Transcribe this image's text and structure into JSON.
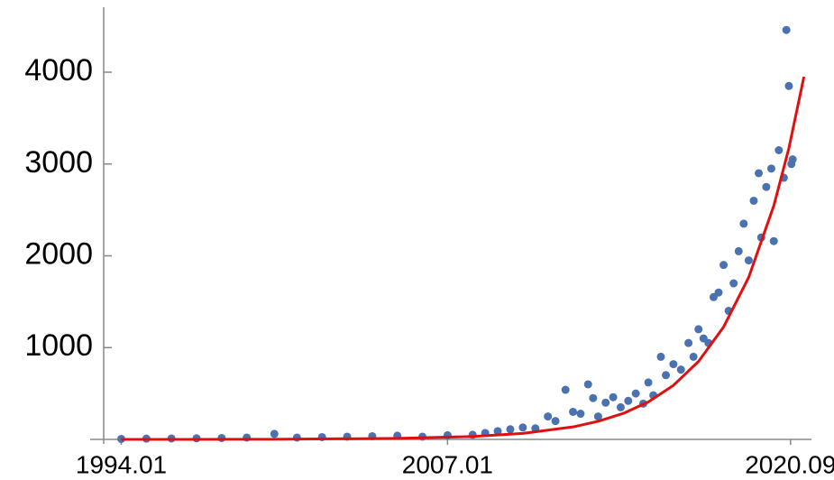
{
  "chart_data": {
    "type": "scatter",
    "xlim": [
      1993.3,
      2021.5
    ],
    "xticks": [
      {
        "value": 1994,
        "label": "1994.01"
      },
      {
        "value": 2007,
        "label": "2007.01"
      },
      {
        "value": 2020.667,
        "label": "2020.09"
      }
    ],
    "ylim": [
      0,
      4700
    ],
    "yticks": [
      1000,
      2000,
      3000,
      4000
    ],
    "series": [
      {
        "type": "scatter",
        "color": "#4a72b0",
        "x": [
          1994,
          1995,
          1996,
          1997,
          1998,
          1999,
          2000.1,
          2001,
          2002,
          2003,
          2004,
          2005,
          2006,
          2007,
          2008,
          2008.5,
          2009,
          2009.5,
          2010,
          2010.5,
          2011,
          2011.3,
          2011.7,
          2012,
          2012.3,
          2012.6,
          2012.8,
          2013,
          2013.3,
          2013.6,
          2013.9,
          2014.2,
          2014.5,
          2014.8,
          2015,
          2015.2,
          2015.5,
          2015.7,
          2016,
          2016.3,
          2016.6,
          2016.8,
          2017,
          2017.2,
          2017.4,
          2017.6,
          2017.8,
          2018,
          2018.2,
          2018.4,
          2018.6,
          2018.8,
          2019,
          2019.2,
          2019.4,
          2019.5,
          2019.7,
          2019.9,
          2020,
          2020.2,
          2020.4,
          2020.5,
          2020.6,
          2020.7,
          2020.75
        ],
        "values": [
          5,
          8,
          10,
          12,
          15,
          20,
          60,
          20,
          25,
          30,
          35,
          40,
          30,
          45,
          50,
          70,
          90,
          110,
          130,
          120,
          250,
          200,
          540,
          300,
          280,
          600,
          450,
          250,
          400,
          460,
          350,
          420,
          500,
          390,
          620,
          480,
          900,
          700,
          820,
          760,
          1050,
          900,
          1200,
          1100,
          1050,
          1550,
          1600,
          1900,
          1400,
          1700,
          2050,
          2350,
          1950,
          2600,
          2900,
          2200,
          2750,
          2950,
          2160,
          3150,
          2850,
          4460,
          3850,
          3000,
          3050
        ]
      },
      {
        "type": "line",
        "color": "#e01010",
        "x": [
          1994,
          1997,
          2000,
          2005,
          2008,
          2010,
          2012,
          2013,
          2014,
          2015,
          2016,
          2017,
          2018,
          2019,
          2020,
          2020.6,
          2021.2
        ],
        "values": [
          0.2,
          0.6,
          1.7,
          10.5,
          31.5,
          65,
          136,
          197,
          283,
          408,
          589,
          849,
          1225,
          1766,
          2546,
          3171,
          3950
        ]
      }
    ]
  }
}
